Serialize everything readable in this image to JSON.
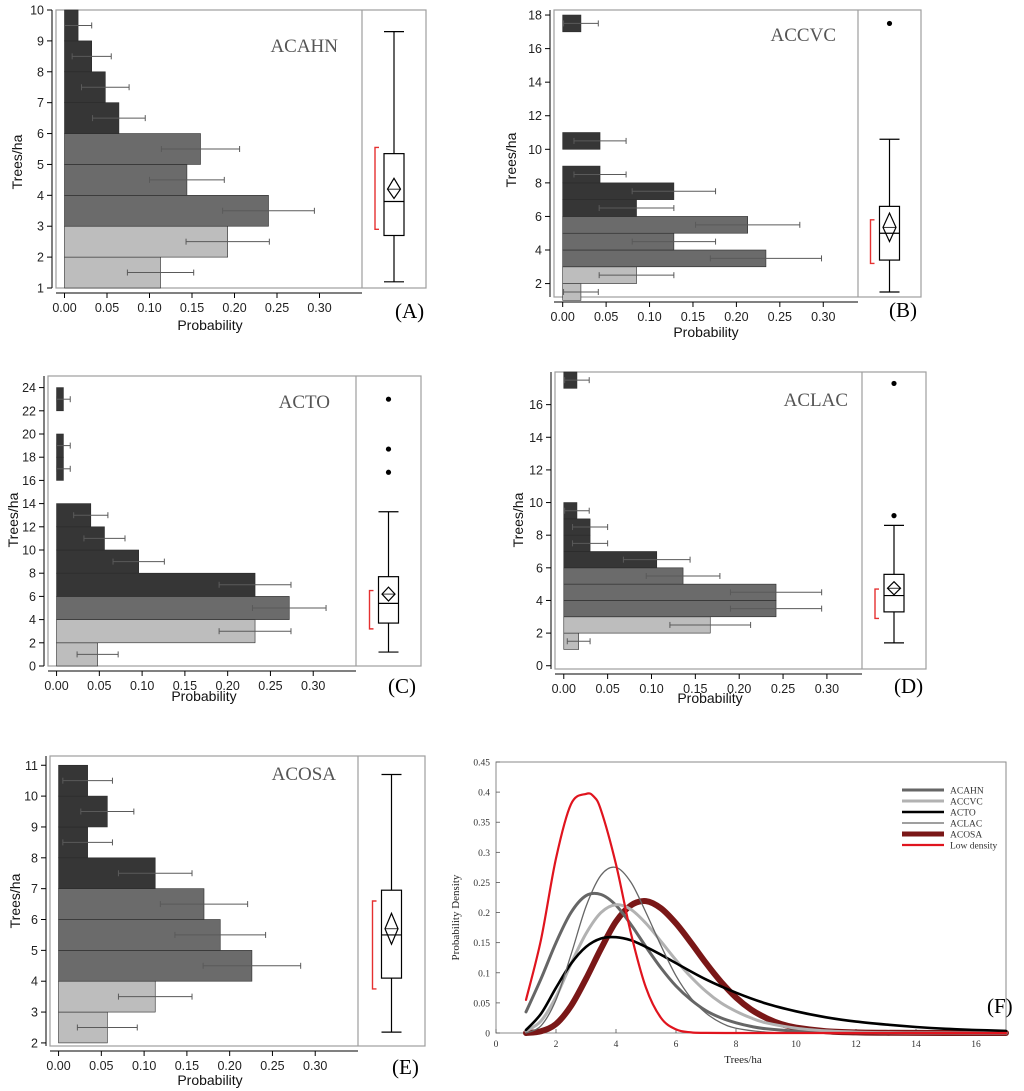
{
  "figure": {
    "colors": {
      "high": "#363636",
      "mid": "#6b6b6b",
      "low": "#bdbdbd",
      "axis": "#000000",
      "panel_border": "#9e9e9e",
      "errorbar": "#5a5a5a",
      "meanbracket": "#e53030"
    }
  },
  "chart_data": [
    {
      "id": "A",
      "type": "histogram-boxplot",
      "panel_label": "(A)",
      "title": "ACAHN",
      "xlabel": "Probability",
      "ylabel": "Trees/ha",
      "xlim": [
        -0.01,
        0.35
      ],
      "ylim": [
        1,
        10
      ],
      "xticks": [
        0.0,
        0.05,
        0.1,
        0.15,
        0.2,
        0.25,
        0.3
      ],
      "xtick_labels": [
        "0.00",
        "0.05",
        "0.10",
        "0.15",
        "0.20",
        "0.25",
        "0.30"
      ],
      "yticks": [
        1,
        2,
        3,
        4,
        5,
        6,
        7,
        8,
        9,
        10
      ],
      "ytick_labels": [
        "1",
        "2",
        "3",
        "4",
        "5",
        "6",
        "7",
        "8",
        "9",
        "10"
      ],
      "bins": [
        {
          "y0": 1,
          "y1": 2,
          "p": 0.113,
          "err": 0.039,
          "tone": "low"
        },
        {
          "y0": 2,
          "y1": 3,
          "p": 0.192,
          "err": 0.049,
          "tone": "low"
        },
        {
          "y0": 3,
          "y1": 4,
          "p": 0.24,
          "err": 0.054,
          "tone": "mid"
        },
        {
          "y0": 4,
          "y1": 5,
          "p": 0.144,
          "err": 0.044,
          "tone": "mid"
        },
        {
          "y0": 5,
          "y1": 6,
          "p": 0.16,
          "err": 0.046,
          "tone": "mid"
        },
        {
          "y0": 6,
          "y1": 7,
          "p": 0.064,
          "err": 0.031,
          "tone": "high"
        },
        {
          "y0": 7,
          "y1": 8,
          "p": 0.048,
          "err": 0.028,
          "tone": "high"
        },
        {
          "y0": 8,
          "y1": 9,
          "p": 0.032,
          "err": 0.023,
          "tone": "high"
        },
        {
          "y0": 9,
          "y1": 10,
          "p": 0.016,
          "err": 0.016,
          "tone": "high"
        }
      ],
      "box": {
        "whisker_low": 1.2,
        "q1": 2.7,
        "median": 3.8,
        "q3": 5.35,
        "whisker_high": 9.3,
        "mean": 4.2,
        "mean_ci": [
          3.9,
          4.55
        ],
        "bracket": [
          2.9,
          5.55
        ],
        "outliers": []
      }
    },
    {
      "id": "B",
      "type": "histogram-boxplot",
      "panel_label": "(B)",
      "title": "ACCVC",
      "xlabel": "Probability",
      "ylabel": "Trees/ha",
      "xlim": [
        -0.01,
        0.34
      ],
      "ylim": [
        1.2,
        18.3
      ],
      "xticks": [
        0.0,
        0.05,
        0.1,
        0.15,
        0.2,
        0.25,
        0.3
      ],
      "xtick_labels": [
        "0.00",
        "0.05",
        "0.10",
        "0.15",
        "0.20",
        "0.25",
        "0.30"
      ],
      "yticks": [
        2,
        4,
        6,
        8,
        10,
        12,
        14,
        16,
        18
      ],
      "ytick_labels": [
        "2",
        "4",
        "6",
        "8",
        "10",
        "12",
        "14",
        "16",
        "18"
      ],
      "bins": [
        {
          "y0": 1,
          "y1": 2,
          "p": 0.021,
          "err": 0.02,
          "tone": "low"
        },
        {
          "y0": 2,
          "y1": 3,
          "p": 0.085,
          "err": 0.043,
          "tone": "low"
        },
        {
          "y0": 3,
          "y1": 4,
          "p": 0.234,
          "err": 0.064,
          "tone": "mid"
        },
        {
          "y0": 4,
          "y1": 5,
          "p": 0.128,
          "err": 0.048,
          "tone": "mid"
        },
        {
          "y0": 5,
          "y1": 6,
          "p": 0.213,
          "err": 0.06,
          "tone": "mid"
        },
        {
          "y0": 6,
          "y1": 7,
          "p": 0.085,
          "err": 0.043,
          "tone": "high"
        },
        {
          "y0": 7,
          "y1": 8,
          "p": 0.128,
          "err": 0.048,
          "tone": "high"
        },
        {
          "y0": 8,
          "y1": 9,
          "p": 0.043,
          "err": 0.03,
          "tone": "high"
        },
        {
          "y0": 10,
          "y1": 11,
          "p": 0.043,
          "err": 0.03,
          "tone": "high"
        },
        {
          "y0": 17,
          "y1": 18,
          "p": 0.021,
          "err": 0.02,
          "tone": "high"
        }
      ],
      "box": {
        "whisker_low": 1.5,
        "q1": 3.4,
        "median": 5.0,
        "q3": 6.6,
        "whisker_high": 10.6,
        "mean": 5.35,
        "mean_ci": [
          4.5,
          6.2
        ],
        "bracket": [
          3.2,
          5.8
        ],
        "outliers": [
          17.5
        ]
      }
    },
    {
      "id": "C",
      "type": "histogram-boxplot",
      "panel_label": "(C)",
      "title": "ACTO",
      "xlabel": "Probability",
      "ylabel": "Trees/ha",
      "xlim": [
        -0.01,
        0.35
      ],
      "ylim": [
        0,
        25
      ],
      "xticks": [
        0.0,
        0.05,
        0.1,
        0.15,
        0.2,
        0.25,
        0.3
      ],
      "xtick_labels": [
        "0.00",
        "0.05",
        "0.10",
        "0.15",
        "0.20",
        "0.25",
        "0.30"
      ],
      "yticks": [
        0,
        2,
        4,
        6,
        8,
        10,
        12,
        14,
        16,
        18,
        20,
        22,
        24
      ],
      "ytick_labels": [
        "0",
        "2",
        "4",
        "6",
        "8",
        "10",
        "12",
        "14",
        "16",
        "18",
        "20",
        "22",
        "24"
      ],
      "bins": [
        {
          "y0": 0,
          "y1": 2,
          "p": 0.048,
          "err": 0.024,
          "tone": "low"
        },
        {
          "y0": 2,
          "y1": 4,
          "p": 0.232,
          "err": 0.042,
          "tone": "low"
        },
        {
          "y0": 4,
          "y1": 6,
          "p": 0.272,
          "err": 0.043,
          "tone": "mid"
        },
        {
          "y0": 6,
          "y1": 8,
          "p": 0.232,
          "err": 0.042,
          "tone": "high"
        },
        {
          "y0": 8,
          "y1": 10,
          "p": 0.096,
          "err": 0.03,
          "tone": "high"
        },
        {
          "y0": 10,
          "y1": 12,
          "p": 0.056,
          "err": 0.024,
          "tone": "high"
        },
        {
          "y0": 12,
          "y1": 14,
          "p": 0.04,
          "err": 0.02,
          "tone": "high"
        },
        {
          "y0": 16,
          "y1": 18,
          "p": 0.008,
          "err": 0.008,
          "tone": "high"
        },
        {
          "y0": 18,
          "y1": 20,
          "p": 0.008,
          "err": 0.008,
          "tone": "high"
        },
        {
          "y0": 22,
          "y1": 24,
          "p": 0.008,
          "err": 0.008,
          "tone": "high"
        }
      ],
      "box": {
        "whisker_low": 1.2,
        "q1": 3.7,
        "median": 5.4,
        "q3": 7.7,
        "whisker_high": 13.3,
        "mean": 6.2,
        "mean_ci": [
          5.6,
          6.8
        ],
        "bracket": [
          3.2,
          6.5
        ],
        "outliers": [
          16.7,
          18.7,
          23.0
        ]
      }
    },
    {
      "id": "D",
      "type": "histogram-boxplot",
      "panel_label": "(D)",
      "title": "ACLAC",
      "xlabel": "Probability",
      "ylabel": "Trees/ha",
      "xlim": [
        -0.01,
        0.34
      ],
      "ylim": [
        -0.2,
        18
      ],
      "xticks": [
        0.0,
        0.05,
        0.1,
        0.15,
        0.2,
        0.25,
        0.3
      ],
      "xtick_labels": [
        "0.00",
        "0.05",
        "0.10",
        "0.15",
        "0.20",
        "0.25",
        "0.30"
      ],
      "yticks": [
        0,
        2,
        4,
        6,
        8,
        10,
        12,
        14,
        16
      ],
      "ytick_labels": [
        "0",
        "2",
        "4",
        "6",
        "8",
        "10",
        "12",
        "14",
        "16"
      ],
      "bins": [
        {
          "y0": 1,
          "y1": 2,
          "p": 0.017,
          "err": 0.013,
          "tone": "low"
        },
        {
          "y0": 2,
          "y1": 3,
          "p": 0.167,
          "err": 0.046,
          "tone": "low"
        },
        {
          "y0": 3,
          "y1": 4,
          "p": 0.242,
          "err": 0.052,
          "tone": "mid"
        },
        {
          "y0": 4,
          "y1": 5,
          "p": 0.242,
          "err": 0.052,
          "tone": "mid"
        },
        {
          "y0": 5,
          "y1": 6,
          "p": 0.136,
          "err": 0.042,
          "tone": "mid"
        },
        {
          "y0": 6,
          "y1": 7,
          "p": 0.106,
          "err": 0.038,
          "tone": "high"
        },
        {
          "y0": 7,
          "y1": 8,
          "p": 0.03,
          "err": 0.02,
          "tone": "high"
        },
        {
          "y0": 8,
          "y1": 9,
          "p": 0.03,
          "err": 0.02,
          "tone": "high"
        },
        {
          "y0": 9,
          "y1": 10,
          "p": 0.015,
          "err": 0.014,
          "tone": "high"
        },
        {
          "y0": 17,
          "y1": 18,
          "p": 0.015,
          "err": 0.014,
          "tone": "high"
        }
      ],
      "box": {
        "whisker_low": 1.4,
        "q1": 3.3,
        "median": 4.3,
        "q3": 5.6,
        "whisker_high": 8.6,
        "mean": 4.75,
        "mean_ci": [
          4.35,
          5.15
        ],
        "bracket": [
          2.9,
          4.7
        ],
        "outliers": [
          9.2,
          17.3
        ]
      }
    },
    {
      "id": "E",
      "type": "histogram-boxplot",
      "panel_label": "(E)",
      "title": "ACOSA",
      "xlabel": "Probability",
      "ylabel": "Trees/ha",
      "xlim": [
        -0.01,
        0.35
      ],
      "ylim": [
        1.9,
        11.3
      ],
      "xticks": [
        0.0,
        0.05,
        0.1,
        0.15,
        0.2,
        0.25,
        0.3
      ],
      "xtick_labels": [
        "0.00",
        "0.05",
        "0.10",
        "0.15",
        "0.20",
        "0.25",
        "0.30"
      ],
      "yticks": [
        2,
        3,
        4,
        5,
        6,
        7,
        8,
        9,
        10,
        11
      ],
      "ytick_labels": [
        "2",
        "3",
        "4",
        "5",
        "6",
        "7",
        "8",
        "9",
        "10",
        "11"
      ],
      "bins": [
        {
          "y0": 2,
          "y1": 3,
          "p": 0.057,
          "err": 0.035,
          "tone": "low"
        },
        {
          "y0": 3,
          "y1": 4,
          "p": 0.113,
          "err": 0.043,
          "tone": "low"
        },
        {
          "y0": 4,
          "y1": 5,
          "p": 0.226,
          "err": 0.057,
          "tone": "mid"
        },
        {
          "y0": 5,
          "y1": 6,
          "p": 0.189,
          "err": 0.053,
          "tone": "mid"
        },
        {
          "y0": 6,
          "y1": 7,
          "p": 0.17,
          "err": 0.051,
          "tone": "mid"
        },
        {
          "y0": 7,
          "y1": 8,
          "p": 0.113,
          "err": 0.043,
          "tone": "high"
        },
        {
          "y0": 8,
          "y1": 9,
          "p": 0.034,
          "err": 0.029,
          "tone": "high"
        },
        {
          "y0": 9,
          "y1": 10,
          "p": 0.057,
          "err": 0.031,
          "tone": "high"
        },
        {
          "y0": 10,
          "y1": 11,
          "p": 0.034,
          "err": 0.029,
          "tone": "high"
        }
      ],
      "box": {
        "whisker_low": 2.35,
        "q1": 4.1,
        "median": 5.5,
        "q3": 6.95,
        "whisker_high": 10.7,
        "mean": 5.7,
        "mean_ci": [
          5.2,
          6.2
        ],
        "bracket": [
          3.75,
          6.6
        ],
        "outliers": []
      }
    },
    {
      "id": "F",
      "type": "line",
      "panel_label": "(F)",
      "xlabel": "Trees/ha",
      "ylabel": "Probability Density",
      "xlim": [
        0,
        17
      ],
      "ylim": [
        0,
        0.45
      ],
      "xticks": [
        0,
        2,
        4,
        6,
        8,
        10,
        12,
        14,
        16
      ],
      "xtick_labels": [
        "0",
        "2",
        "4",
        "6",
        "8",
        "10",
        "12",
        "14",
        "16"
      ],
      "yticks": [
        0,
        0.05,
        0.1,
        0.15,
        0.2,
        0.25,
        0.3,
        0.35,
        0.4,
        0.45
      ],
      "ytick_labels": [
        "0",
        "0.05",
        "0.1",
        "0.15",
        "0.2",
        "0.25",
        "0.3",
        "0.35",
        "0.4",
        "0.45"
      ],
      "legend_position": "top-right",
      "series": [
        {
          "name": "ACAHN",
          "color": "#666666",
          "width": 3,
          "x": [
            1,
            1.5,
            2,
            2.5,
            3,
            3.5,
            4,
            4.5,
            5,
            5.5,
            6,
            6.5,
            7,
            7.5,
            8,
            8.5,
            9,
            10,
            11,
            12,
            13,
            14,
            15,
            16,
            17
          ],
          "y": [
            0.035,
            0.09,
            0.15,
            0.2,
            0.228,
            0.23,
            0.212,
            0.18,
            0.143,
            0.108,
            0.078,
            0.055,
            0.037,
            0.025,
            0.017,
            0.011,
            0.007,
            0.003,
            0.001,
            0.0005,
            0.0002,
            0.0001,
            0,
            0,
            0
          ]
        },
        {
          "name": "ACCVC",
          "color": "#b2b2b2",
          "width": 3,
          "x": [
            1,
            1.5,
            2,
            2.5,
            3,
            3.5,
            4,
            4.5,
            5,
            5.5,
            6,
            6.5,
            7,
            7.5,
            8,
            8.5,
            9,
            10,
            11,
            12,
            13,
            14,
            15,
            16,
            17
          ],
          "y": [
            0.003,
            0.02,
            0.06,
            0.115,
            0.165,
            0.2,
            0.213,
            0.205,
            0.182,
            0.152,
            0.121,
            0.093,
            0.069,
            0.05,
            0.036,
            0.025,
            0.017,
            0.008,
            0.0035,
            0.0015,
            0.0006,
            0.0002,
            0.0001,
            0,
            0
          ]
        },
        {
          "name": "ACTO",
          "color": "#000000",
          "width": 2.6,
          "x": [
            1,
            1.5,
            2,
            2.5,
            3,
            3.5,
            4,
            4.5,
            5,
            5.5,
            6,
            7,
            8,
            9,
            10,
            11,
            12,
            13,
            14,
            15,
            16,
            17
          ],
          "y": [
            0.005,
            0.032,
            0.075,
            0.115,
            0.143,
            0.157,
            0.159,
            0.154,
            0.143,
            0.13,
            0.116,
            0.089,
            0.067,
            0.049,
            0.036,
            0.026,
            0.019,
            0.014,
            0.01,
            0.007,
            0.005,
            0.0035
          ]
        },
        {
          "name": "ACLAC",
          "color": "#666666",
          "width": 1.3,
          "x": [
            1,
            1.5,
            2,
            2.5,
            3,
            3.5,
            4,
            4.5,
            5,
            5.5,
            6,
            6.5,
            7,
            7.5,
            8,
            9,
            10,
            11,
            12,
            14,
            17
          ],
          "y": [
            0.0,
            0.012,
            0.055,
            0.13,
            0.21,
            0.262,
            0.275,
            0.25,
            0.2,
            0.145,
            0.095,
            0.058,
            0.033,
            0.017,
            0.008,
            0.0015,
            0.0002,
            0,
            0,
            0,
            0
          ]
        },
        {
          "name": "ACOSA",
          "color": "#7a1717",
          "width": 6,
          "x": [
            1,
            1.5,
            2,
            2.5,
            3,
            3.5,
            4,
            4.5,
            5,
            5.5,
            6,
            6.5,
            7,
            7.5,
            8,
            8.5,
            9,
            9.5,
            10,
            11,
            12,
            13,
            14,
            15,
            16,
            17
          ],
          "y": [
            0.0,
            0.003,
            0.015,
            0.045,
            0.09,
            0.14,
            0.185,
            0.212,
            0.219,
            0.207,
            0.182,
            0.15,
            0.116,
            0.085,
            0.059,
            0.039,
            0.025,
            0.015,
            0.009,
            0.003,
            0.001,
            0.0003,
            0.0001,
            0,
            0,
            0
          ]
        },
        {
          "name": "Low density",
          "color": "#e0141e",
          "width": 2.2,
          "x": [
            1,
            1.5,
            2,
            2.5,
            3,
            3.25,
            3.5,
            4,
            4.5,
            5,
            5.5,
            6,
            6.5,
            7,
            8,
            9,
            10,
            12,
            17
          ],
          "y": [
            0.055,
            0.155,
            0.29,
            0.38,
            0.397,
            0.393,
            0.37,
            0.28,
            0.165,
            0.075,
            0.025,
            0.006,
            0.001,
            0.0002,
            0,
            0,
            0,
            0,
            0
          ]
        }
      ]
    }
  ]
}
